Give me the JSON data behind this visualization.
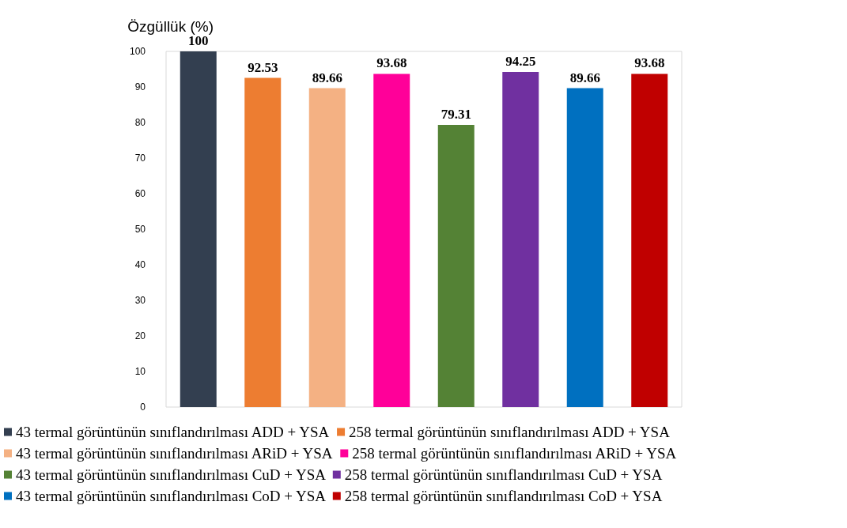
{
  "chart_data": {
    "type": "bar",
    "ylabel": "Özgüllük (%)",
    "categories": [
      null,
      null,
      null,
      null,
      null,
      null,
      null,
      null
    ],
    "series": [
      {
        "name": "43 termal görüntünün sınıflandırılması ADD + YSA",
        "color": "#333f50",
        "values": [
          100,
          null,
          null,
          null,
          null,
          null,
          null,
          null
        ]
      },
      {
        "name": "258 termal görüntünün sınıflandırılması ADD + YSA",
        "color": "#ed7d31",
        "values": [
          null,
          92.53,
          null,
          null,
          null,
          null,
          null,
          null
        ]
      },
      {
        "name": "43 termal görüntünün sınıflandırılması ARiD + YSA",
        "color": "#f4b183",
        "values": [
          null,
          null,
          89.66,
          null,
          null,
          null,
          null,
          null
        ]
      },
      {
        "name": "258 termal görüntünün sınıflandırılması ARiD + YSA",
        "color": "#ff0099",
        "values": [
          null,
          null,
          null,
          93.68,
          null,
          null,
          null,
          null
        ]
      },
      {
        "name": "43 termal görüntünün sınıflandırılması CuD + YSA",
        "color": "#548235",
        "values": [
          null,
          null,
          null,
          null,
          79.31,
          null,
          null,
          null
        ]
      },
      {
        "name": "258 termal görüntünün sınıflandırılması CuD + YSA",
        "color": "#7030a0",
        "values": [
          null,
          null,
          null,
          null,
          null,
          94.25,
          null,
          null
        ]
      },
      {
        "name": "43 termal görüntünün sınıflandırılması CoD + YSA",
        "color": "#0070c0",
        "values": [
          null,
          null,
          null,
          null,
          null,
          null,
          89.66,
          null
        ]
      },
      {
        "name": "258 termal görüntünün sınıflandırılması CoD + YSA",
        "color": "#c00000",
        "values": [
          null,
          null,
          null,
          null,
          null,
          null,
          null,
          93.68
        ]
      }
    ],
    "ylim": [
      0,
      100
    ],
    "yticks": [
      0,
      10,
      20,
      30,
      40,
      50,
      60,
      70,
      80,
      90,
      100
    ],
    "data_labels": true,
    "stacked": true,
    "grid": false,
    "legend": "bottom"
  }
}
